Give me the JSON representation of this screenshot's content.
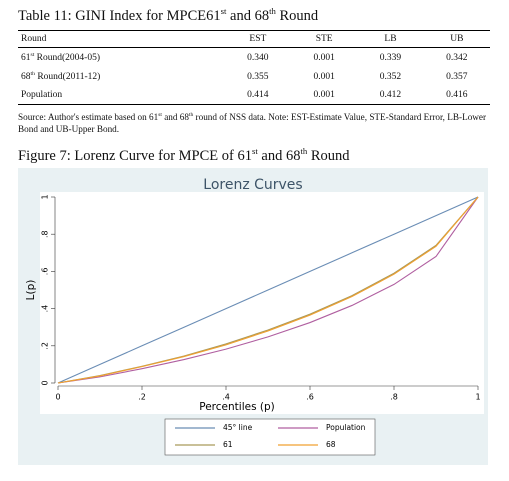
{
  "table_caption": [
    "Table 11: GINI Index for MPCE61",
    "st",
    " and 68",
    "th",
    " Round"
  ],
  "table": {
    "header": [
      "Round",
      "EST",
      "STE",
      "LB",
      "UB"
    ],
    "rows": [
      [
        [
          "61",
          "st",
          " Round(2004-05)"
        ],
        "0.340",
        "0.001",
        "0.339",
        "0.342"
      ],
      [
        [
          "68",
          "th",
          " Round(2011-12)"
        ],
        "0.355",
        "0.001",
        "0.352",
        "0.357"
      ],
      [
        [
          "Population"
        ],
        "0.414",
        "0.001",
        "0.412",
        "0.416"
      ]
    ]
  },
  "source_note": [
    "Source: Author's estimate based on 61",
    "st",
    " and 68",
    "th",
    " round of NSS data. Note: EST-Estimate Value, STE-Standard Error, LB-Lower Bond and UB-Upper Bond."
  ],
  "figure_caption": [
    "Figure 7: Lorenz Curve for MPCE of 61",
    "st",
    " and 68",
    "th",
    " Round"
  ],
  "chart_data": {
    "type": "line",
    "title": "Lorenz Curves",
    "x_label": "Percentiles (p)",
    "y_label": "L(p)",
    "x": [
      0,
      0.1,
      0.2,
      0.3,
      0.4,
      0.5,
      0.6,
      0.7,
      0.8,
      0.9,
      1
    ],
    "xlim": [
      0,
      1
    ],
    "ylim": [
      0,
      1
    ],
    "xticks": [
      0,
      {
        "value": 0.2,
        "label": ".2"
      },
      {
        "value": 0.4,
        "label": ".4"
      },
      {
        "value": 0.6,
        "label": ".6"
      },
      {
        "value": 0.8,
        "label": ".8"
      },
      1
    ],
    "yticks": [
      0,
      {
        "value": 0.2,
        "label": ".2"
      },
      {
        "value": 0.4,
        "label": ".4"
      },
      {
        "value": 0.6,
        "label": ".6"
      },
      {
        "value": 0.8,
        "label": ".8"
      },
      1
    ],
    "series": [
      {
        "name": "45° line",
        "color": "#6a8db5",
        "values": [
          0,
          0.1,
          0.2,
          0.3,
          0.4,
          0.5,
          0.6,
          0.7,
          0.8,
          0.9,
          1
        ]
      },
      {
        "name": "Population",
        "color": "#b05fa0",
        "values": [
          0,
          0.033,
          0.077,
          0.126,
          0.182,
          0.248,
          0.325,
          0.417,
          0.53,
          0.68,
          1
        ]
      },
      {
        "name": "61",
        "color": "#a99a5a",
        "values": [
          0,
          0.04,
          0.09,
          0.145,
          0.21,
          0.285,
          0.37,
          0.47,
          0.59,
          0.74,
          1
        ]
      },
      {
        "name": "68",
        "color": "#f0a030",
        "values": [
          0,
          0.038,
          0.088,
          0.142,
          0.205,
          0.28,
          0.365,
          0.465,
          0.585,
          0.735,
          1
        ]
      }
    ]
  }
}
